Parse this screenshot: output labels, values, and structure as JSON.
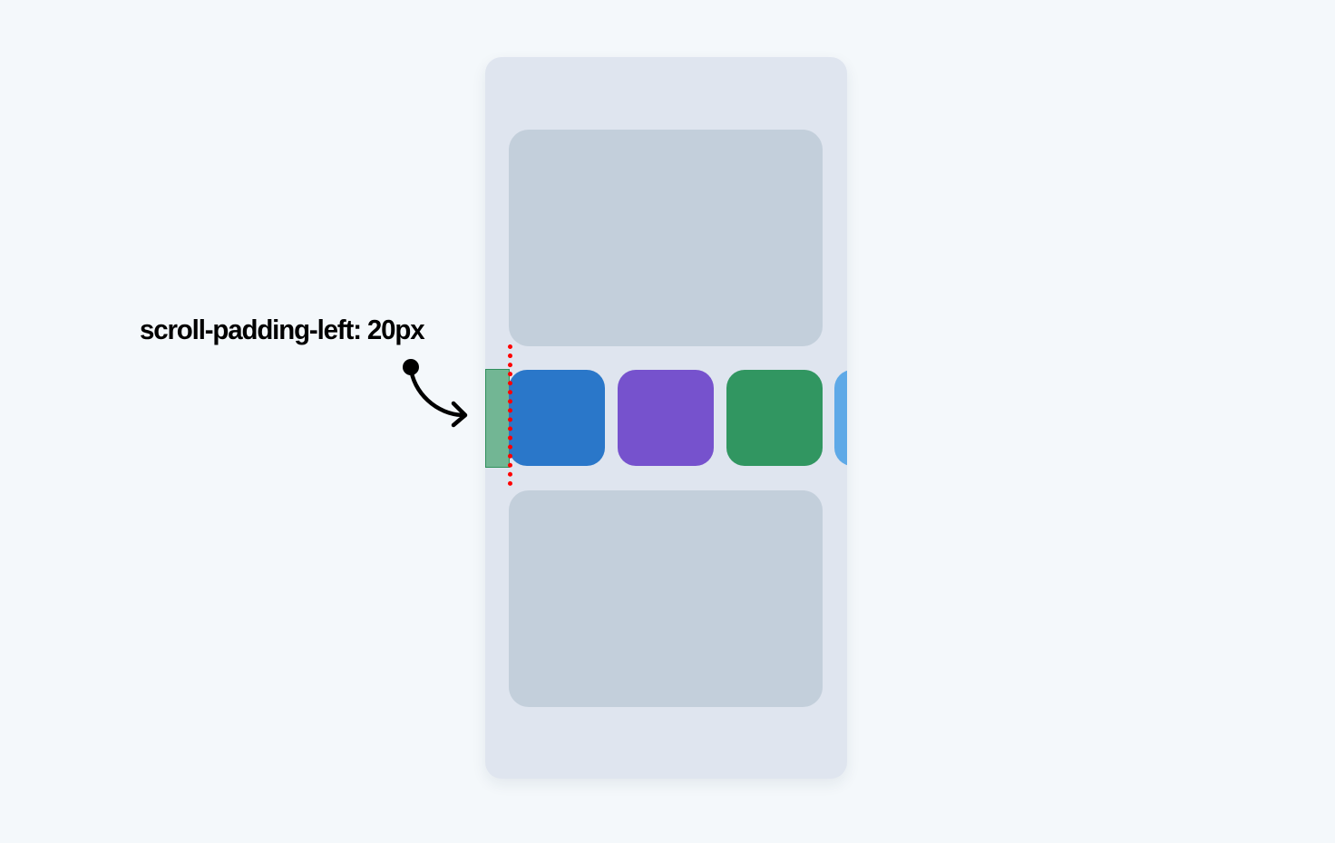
{
  "annotation": {
    "label": "scroll-padding-left: 20px"
  },
  "colors": {
    "page_background": "#f4f8fb",
    "phone_background": "#dfe5ef",
    "placeholder_card": "#c3cfdb",
    "scroll_padding_fill": "#72b694",
    "scroll_padding_border": "#2f8f5c",
    "snap_line": "#ff0000"
  },
  "carousel": {
    "items": [
      {
        "name": "blue",
        "color": "#2a77c9"
      },
      {
        "name": "purple",
        "color": "#7652cd"
      },
      {
        "name": "green",
        "color": "#319661"
      },
      {
        "name": "light-blue",
        "color": "#5ea9e7"
      }
    ]
  }
}
